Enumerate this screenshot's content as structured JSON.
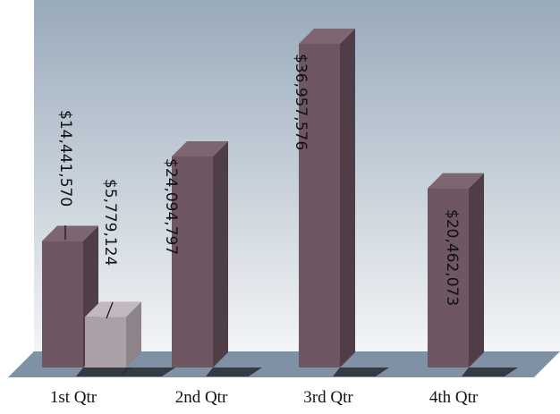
{
  "chart_data": {
    "type": "bar",
    "style": "3d-column",
    "categories": [
      "1st Qtr",
      "2nd Qtr",
      "3rd Qtr",
      "4th Qtr"
    ],
    "series": [
      {
        "values": [
          14441570,
          24094797,
          36957576,
          20462073
        ]
      },
      {
        "values": [
          5779124,
          null,
          null,
          null
        ]
      }
    ],
    "data_labels": [
      [
        "$14,441,570",
        "$24,094,797",
        "$36,957,576",
        "$20,462,073"
      ],
      [
        "$5,779,124",
        null,
        null,
        null
      ]
    ],
    "ylim": [
      0,
      38000000
    ],
    "grid": false,
    "legend": "none",
    "colors": {
      "series_1": "#6e5763",
      "series_1_side": "#4f3d47",
      "series_1_top": "#7d6672",
      "series_2": "#aba0a7",
      "series_2_side": "#8d8489",
      "series_2_top": "#c2b9bf",
      "wall_top": "#99aabb",
      "wall_bottom": "#f3f5f7",
      "floor": "#7f91a5",
      "floor_shadow": "#2e3238"
    }
  }
}
